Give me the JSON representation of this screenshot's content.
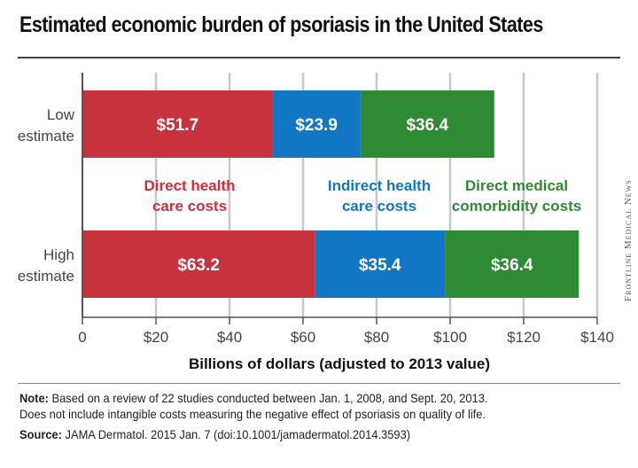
{
  "title": "Estimated economic burden of psoriasis in the United States",
  "note_label": "Note:",
  "note_line1": "Based on a review of 22 studies conducted between Jan. 1, 2008, and Sept. 20, 2013.",
  "note_line2": "Does not include intangible costs measuring the negative effect of psoriasis on quality of life.",
  "source_label": "Source:",
  "source_text": "JAMA Dermatol. 2015 Jan. 7 (doi:10.1001/jamadermatol.2014.3593)",
  "credit": "Frontline Medical News",
  "colors": {
    "direct": "#c8323c",
    "indirect": "#1177c4",
    "comorbidity": "#2f8a34",
    "grid": "#c8c8c8"
  },
  "chart_data": {
    "type": "bar",
    "orientation": "horizontal",
    "stacked": true,
    "categories": [
      "Low estimate",
      "High estimate"
    ],
    "category_lines": [
      [
        "Low",
        "estimate"
      ],
      [
        "High",
        "estimate"
      ]
    ],
    "series": [
      {
        "name": "Direct health care costs",
        "name_lines": [
          "Direct health",
          "care costs"
        ],
        "key": "direct",
        "values": [
          51.7,
          63.2
        ],
        "labels": [
          "$51.7",
          "$63.2"
        ]
      },
      {
        "name": "Indirect health care costs",
        "name_lines": [
          "Indirect health",
          "care costs"
        ],
        "key": "indirect",
        "values": [
          23.9,
          35.4
        ],
        "labels": [
          "$23.9",
          "$35.4"
        ]
      },
      {
        "name": "Direct medical comorbidity costs",
        "name_lines": [
          "Direct medical",
          "comorbidity costs"
        ],
        "key": "comorbidity",
        "values": [
          36.4,
          36.4
        ],
        "labels": [
          "$36.4",
          "$36.4"
        ]
      }
    ],
    "xlabel": "Billions of dollars (adjusted to 2013 value)",
    "xlim": [
      0,
      140
    ],
    "xticks": [
      0,
      20,
      40,
      60,
      80,
      100,
      120,
      140
    ],
    "xtick_labels": [
      "0",
      "$20",
      "$40",
      "$60",
      "$80",
      "$100",
      "$120",
      "$140"
    ],
    "grid": true,
    "legend": "inline-between-bars"
  }
}
